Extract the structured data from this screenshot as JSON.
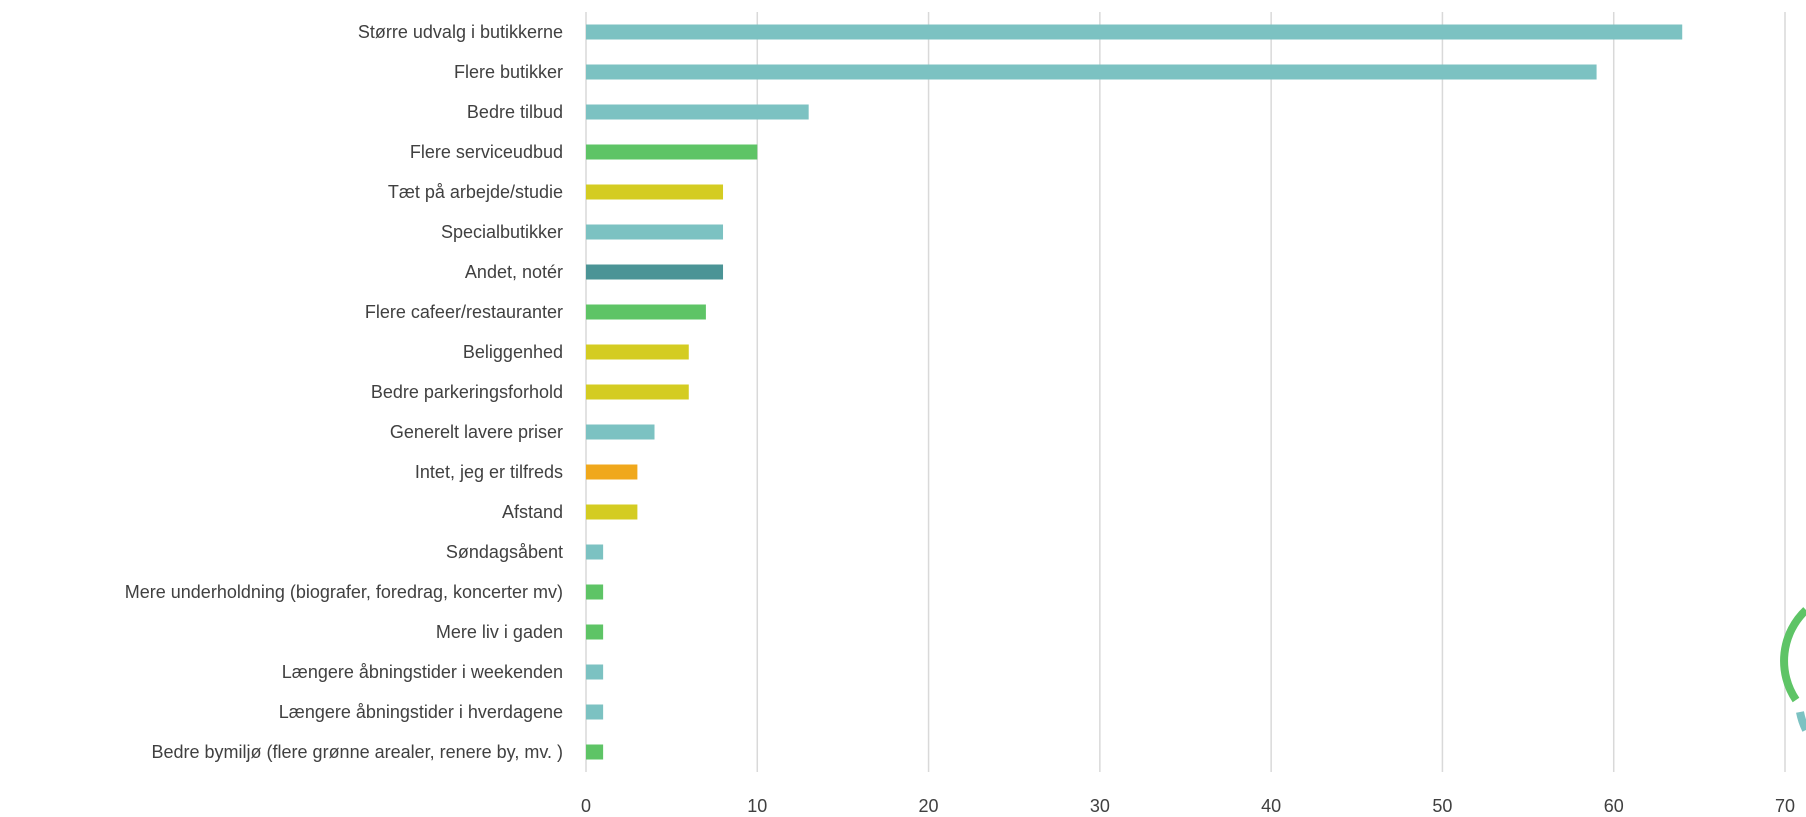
{
  "chart_data": {
    "type": "bar",
    "orientation": "horizontal",
    "title": "",
    "xlabel": "",
    "ylabel": "",
    "xlim": [
      0,
      70
    ],
    "x_ticks": [
      0,
      10,
      20,
      30,
      40,
      50,
      60,
      70
    ],
    "grid": "vertical",
    "legend": "none",
    "categories": [
      "Større udvalg i butikkerne",
      "Flere butikker",
      "Bedre tilbud",
      "Flere serviceudbud",
      "Tæt på arbejde/studie",
      "Specialbutikker",
      "Andet, notér",
      "Flere cafeer/restauranter",
      "Beliggenhed",
      "Bedre parkeringsforhold",
      "Generelt lavere priser",
      "Intet, jeg er tilfreds",
      "Afstand",
      "Søndagsåbent",
      "Mere underholdning (biografer, foredrag, koncerter mv)",
      "Mere liv i gaden",
      "Længere åbningstider i weekenden",
      "Længere åbningstider i hverdagene",
      "Bedre bymiljø (flere grønne arealer, renere by, mv. )"
    ],
    "values": [
      64,
      59,
      13,
      10,
      8,
      8,
      8,
      7,
      6,
      6,
      4,
      3,
      3,
      1,
      1,
      1,
      1,
      1,
      1
    ],
    "bar_colors": [
      "#7cc2c2",
      "#7cc2c2",
      "#7cc2c2",
      "#5ec466",
      "#d4cc22",
      "#7cc2c2",
      "#4b9496",
      "#5ec466",
      "#d4cc22",
      "#d4cc22",
      "#7cc2c2",
      "#f0a81c",
      "#d4cc22",
      "#7cc2c2",
      "#5ec466",
      "#5ec466",
      "#7cc2c2",
      "#7cc2c2",
      "#5ec466"
    ]
  },
  "colors": {
    "gridline": "#d9d9d9",
    "text": "#404040",
    "logo_green": "#5ec466",
    "logo_teal": "#7cc2c2"
  }
}
